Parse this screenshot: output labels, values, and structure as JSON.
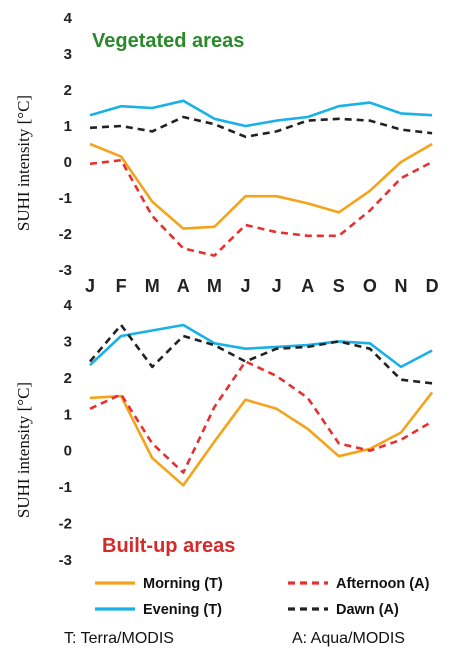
{
  "chart_data": [
    {
      "type": "line",
      "title": "Vegetated areas",
      "title_color": "#2a8a2a",
      "ylabel": "SUHI intensity [°C]",
      "ylim": [
        -3,
        4
      ],
      "yticks": [
        "4",
        "3",
        "2",
        "1",
        "0",
        "-1",
        "-2",
        "-3"
      ],
      "categories": [
        "J",
        "F",
        "M",
        "A",
        "M",
        "J",
        "J",
        "A",
        "S",
        "O",
        "N",
        "D"
      ],
      "series": [
        {
          "name": "Morning (T)",
          "color": "#f5a31a",
          "dash": false,
          "values": [
            0.5,
            0.15,
            -1.1,
            -1.85,
            -1.8,
            -0.95,
            -0.95,
            -1.15,
            -1.4,
            -0.8,
            0.0,
            0.5
          ]
        },
        {
          "name": "Evening (T)",
          "color": "#1ab0e8",
          "dash": false,
          "values": [
            1.3,
            1.55,
            1.5,
            1.7,
            1.2,
            1.0,
            1.15,
            1.25,
            1.55,
            1.65,
            1.35,
            1.3
          ]
        },
        {
          "name": "Afternoon (A)",
          "color": "#e83030",
          "dash": true,
          "values": [
            -0.05,
            0.05,
            -1.5,
            -2.4,
            -2.6,
            -1.75,
            -1.95,
            -2.05,
            -2.05,
            -1.35,
            -0.45,
            0.0
          ]
        },
        {
          "name": "Dawn (A)",
          "color": "#222222",
          "dash": true,
          "values": [
            0.95,
            1.0,
            0.85,
            1.25,
            1.05,
            0.7,
            0.85,
            1.15,
            1.2,
            1.15,
            0.9,
            0.8
          ]
        }
      ]
    },
    {
      "type": "line",
      "title": "Built-up areas",
      "title_color": "#d42a2a",
      "ylabel": "SUHI intensity [°C]",
      "ylim": [
        -3,
        4
      ],
      "yticks": [
        "4",
        "3",
        "2",
        "1",
        "0",
        "-1",
        "-2",
        "-3"
      ],
      "categories": [
        "J",
        "F",
        "M",
        "A",
        "M",
        "J",
        "J",
        "A",
        "S",
        "O",
        "N",
        "D"
      ],
      "series": [
        {
          "name": "Morning (T)",
          "color": "#f5a31a",
          "dash": false,
          "values": [
            1.45,
            1.5,
            -0.2,
            -0.95,
            0.25,
            1.4,
            1.15,
            0.6,
            -0.15,
            0.05,
            0.5,
            1.6
          ]
        },
        {
          "name": "Evening (T)",
          "color": "#1ab0e8",
          "dash": false,
          "values": [
            2.35,
            3.15,
            3.3,
            3.45,
            2.95,
            2.8,
            2.85,
            2.9,
            3.0,
            2.95,
            2.3,
            2.75
          ]
        },
        {
          "name": "Afternoon (A)",
          "color": "#e83030",
          "dash": true,
          "values": [
            1.15,
            1.55,
            0.2,
            -0.6,
            1.2,
            2.45,
            2.05,
            1.45,
            0.2,
            0.0,
            0.3,
            0.8
          ]
        },
        {
          "name": "Dawn (A)",
          "color": "#222222",
          "dash": true,
          "values": [
            2.45,
            3.45,
            2.3,
            3.15,
            2.9,
            2.45,
            2.8,
            2.85,
            3.0,
            2.8,
            1.95,
            1.85
          ]
        }
      ]
    }
  ],
  "legend": [
    {
      "label": "Morning (T)",
      "color": "#f5a31a",
      "dash": false
    },
    {
      "label": "Afternoon (A)",
      "color": "#e83030",
      "dash": true
    },
    {
      "label": "Evening (T)",
      "color": "#1ab0e8",
      "dash": false
    },
    {
      "label": "Dawn (A)",
      "color": "#222222",
      "dash": true
    }
  ],
  "footer": {
    "terra": "T: Terra/MODIS",
    "aqua": "A: Aqua/MODIS"
  }
}
